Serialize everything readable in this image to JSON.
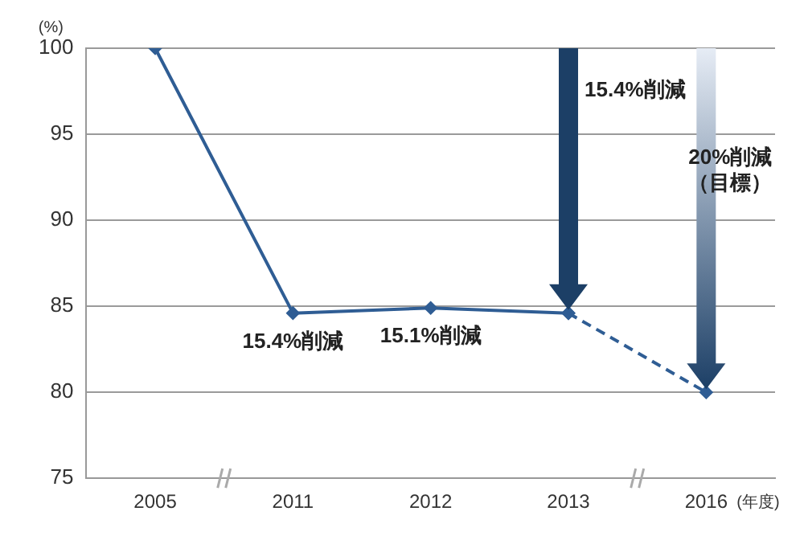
{
  "chart_data": {
    "type": "line",
    "ylabel": "(%)",
    "xlabel": "(年度)",
    "categories": [
      "2005",
      "2011",
      "2012",
      "2013",
      "2016"
    ],
    "series": [
      {
        "color": "#2f5d94",
        "values": [
          100,
          84.6,
          84.9,
          84.6,
          null
        ],
        "line_style": "solid"
      },
      {
        "color": "#2f5d94",
        "values": [
          null,
          null,
          null,
          84.6,
          80
        ],
        "line_style": "dashed"
      }
    ],
    "ylim": [
      75,
      100
    ],
    "yticks": [
      75,
      80,
      85,
      90,
      95,
      100
    ],
    "grid": "y",
    "legend": false,
    "marker": "diamond",
    "annotations": [
      {
        "text": "15.4%削減",
        "x": "2011",
        "y": 84.6
      },
      {
        "text": "15.1%削減",
        "x": "2012",
        "y": 84.9
      },
      "15.4%削減",
      "20%削減（目標）"
    ]
  }
}
